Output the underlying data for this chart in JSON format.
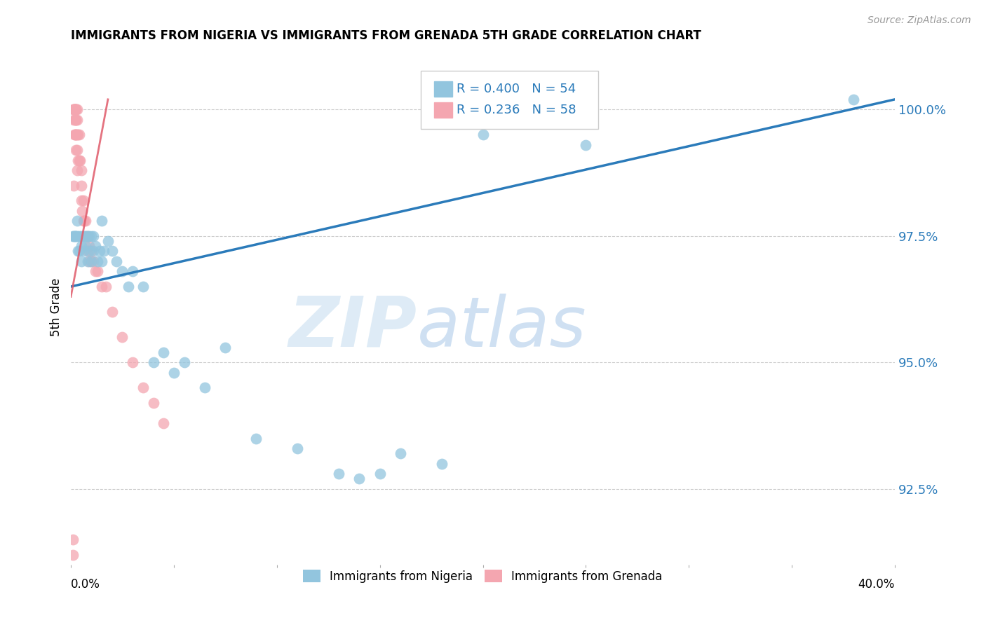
{
  "title": "IMMIGRANTS FROM NIGERIA VS IMMIGRANTS FROM GRENADA 5TH GRADE CORRELATION CHART",
  "source": "Source: ZipAtlas.com",
  "ylabel": "5th Grade",
  "y_ticks": [
    92.5,
    95.0,
    97.5,
    100.0
  ],
  "y_tick_labels": [
    "92.5%",
    "95.0%",
    "97.5%",
    "100.0%"
  ],
  "xlim": [
    0.0,
    40.0
  ],
  "ylim": [
    91.0,
    101.2
  ],
  "nigeria_R": 0.4,
  "nigeria_N": 54,
  "grenada_R": 0.236,
  "grenada_N": 58,
  "nigeria_color": "#92c5de",
  "grenada_color": "#f4a6b0",
  "nigeria_line_color": "#2b7bba",
  "grenada_line_color": "#e05a6a",
  "legend_label_nigeria": "Immigrants from Nigeria",
  "legend_label_grenada": "Immigrants from Grenada",
  "watermark_zip": "ZIP",
  "watermark_atlas": "atlas",
  "nigeria_x": [
    0.1,
    0.15,
    0.2,
    0.2,
    0.25,
    0.3,
    0.3,
    0.35,
    0.4,
    0.4,
    0.5,
    0.5,
    0.5,
    0.6,
    0.6,
    0.7,
    0.7,
    0.8,
    0.8,
    0.9,
    0.9,
    1.0,
    1.0,
    1.1,
    1.1,
    1.2,
    1.3,
    1.4,
    1.5,
    1.5,
    1.6,
    1.8,
    2.0,
    2.2,
    2.5,
    2.8,
    3.0,
    3.5,
    4.0,
    4.5,
    5.0,
    5.5,
    6.5,
    7.5,
    9.0,
    11.0,
    13.0,
    14.0,
    15.0,
    16.0,
    18.0,
    20.0,
    25.0,
    38.0
  ],
  "nigeria_y": [
    97.5,
    97.5,
    97.5,
    97.5,
    97.5,
    97.5,
    97.8,
    97.2,
    97.5,
    97.2,
    97.5,
    97.3,
    97.0,
    97.5,
    97.2,
    97.5,
    97.3,
    97.5,
    97.0,
    97.5,
    97.2,
    97.5,
    97.0,
    97.5,
    97.2,
    97.3,
    97.0,
    97.2,
    97.8,
    97.0,
    97.2,
    97.4,
    97.2,
    97.0,
    96.8,
    96.5,
    96.8,
    96.5,
    95.0,
    95.2,
    94.8,
    95.0,
    94.5,
    95.3,
    93.5,
    93.3,
    92.8,
    92.7,
    92.8,
    93.2,
    93.0,
    99.5,
    99.3,
    100.2
  ],
  "grenada_x": [
    0.1,
    0.1,
    0.12,
    0.15,
    0.15,
    0.15,
    0.18,
    0.18,
    0.2,
    0.2,
    0.2,
    0.2,
    0.2,
    0.22,
    0.22,
    0.22,
    0.25,
    0.25,
    0.25,
    0.25,
    0.25,
    0.3,
    0.3,
    0.3,
    0.3,
    0.3,
    0.35,
    0.35,
    0.4,
    0.4,
    0.45,
    0.5,
    0.5,
    0.5,
    0.55,
    0.6,
    0.6,
    0.65,
    0.7,
    0.7,
    0.8,
    0.8,
    0.9,
    0.9,
    1.0,
    1.0,
    1.1,
    1.2,
    1.3,
    1.5,
    1.7,
    2.0,
    2.5,
    3.0,
    3.5,
    4.0,
    4.5,
    0.12
  ],
  "grenada_y": [
    91.2,
    91.5,
    100.0,
    100.0,
    100.0,
    99.8,
    100.0,
    99.5,
    100.0,
    100.0,
    100.0,
    99.8,
    99.5,
    100.0,
    99.8,
    99.5,
    100.0,
    100.0,
    99.8,
    99.5,
    99.2,
    100.0,
    99.8,
    99.5,
    99.2,
    98.8,
    99.5,
    99.0,
    99.5,
    99.0,
    99.0,
    98.8,
    98.5,
    98.2,
    98.0,
    98.2,
    97.8,
    97.8,
    97.8,
    97.5,
    97.5,
    97.2,
    97.3,
    97.0,
    97.2,
    97.0,
    97.0,
    96.8,
    96.8,
    96.5,
    96.5,
    96.0,
    95.5,
    95.0,
    94.5,
    94.2,
    93.8,
    98.5
  ]
}
